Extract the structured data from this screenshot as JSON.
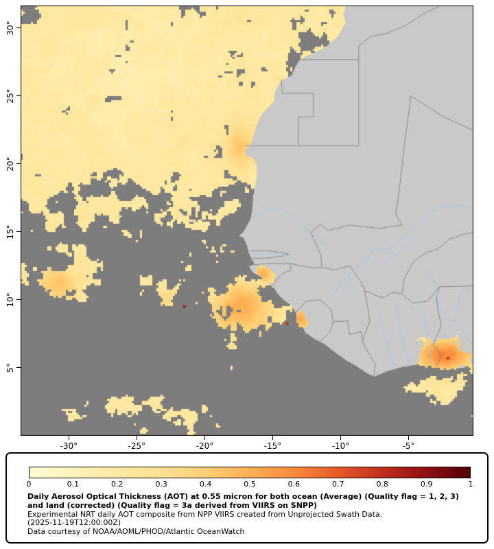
{
  "map": {
    "y_axis": {
      "ticks": [
        {
          "label": "30°",
          "value": 30
        },
        {
          "label": "25°",
          "value": 25
        },
        {
          "label": "20°",
          "value": 20
        },
        {
          "label": "15°",
          "value": 15
        },
        {
          "label": "10°",
          "value": 10
        },
        {
          "label": "5°",
          "value": 5
        }
      ]
    },
    "x_axis": {
      "ticks": [
        {
          "label": "-30°",
          "value": -30
        },
        {
          "label": "-25°",
          "value": -25
        },
        {
          "label": "-20°",
          "value": -20
        },
        {
          "label": "-15°",
          "value": -15
        },
        {
          "label": "-10°",
          "value": -10
        },
        {
          "label": "-5°",
          "value": -5
        }
      ]
    },
    "colors": {
      "ocean_nodata": "#7d7d7d",
      "land": "#c9c9c9",
      "country_border": "#8a8a8a",
      "river": "#a9c9e9",
      "frame": "#000000"
    }
  },
  "legend": {
    "colorbar_ticks": [
      "0",
      "0.1",
      "0.2",
      "0.3",
      "0.4",
      "0.5",
      "0.6",
      "0.7",
      "0.8",
      "0.9",
      "1"
    ],
    "palette": [
      [
        0.0,
        "#fffcd6"
      ],
      [
        0.1,
        "#fff3bb"
      ],
      [
        0.2,
        "#ffe9a2"
      ],
      [
        0.3,
        "#ffe193"
      ],
      [
        0.4,
        "#ffcf74"
      ],
      [
        0.5,
        "#ffb055"
      ],
      [
        0.6,
        "#fb8a3c"
      ],
      [
        0.7,
        "#e55b28"
      ],
      [
        0.8,
        "#c02f1d"
      ],
      [
        0.9,
        "#8f1012"
      ],
      [
        1.0,
        "#520008"
      ]
    ],
    "caption_bold": "Daily Aerosol Optical Thickness (AOT) at 0.55 micron for both ocean (Average) (Quality flag = 1, 2, 3) and land (corrected) (Quality flag = 3a derived from VIIRS on SNPP)",
    "line_experimental": "Experimental NRT daily AOT composite from NPP VIIRS created from Unprojected Swath Data.",
    "line_timestamp": "(2025-11-19T12:00:00Z)",
    "line_credit": "Data courtesy of NOAA/AOML/PHOD/Atlantic OceanWatch"
  }
}
